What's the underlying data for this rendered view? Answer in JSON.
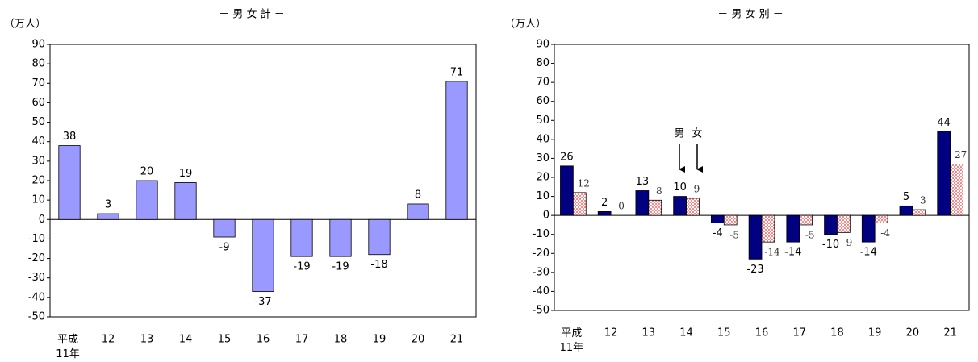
{
  "chart_data": [
    {
      "type": "bar",
      "title": "－ 男 女 計 －",
      "y_label": "（万人）",
      "categories": [
        "平成\n11年",
        "12",
        "13",
        "14",
        "15",
        "16",
        "17",
        "18",
        "19",
        "20",
        "21"
      ],
      "values": [
        38,
        3,
        20,
        19,
        -9,
        -37,
        -19,
        -19,
        -18,
        8,
        71
      ],
      "color": "#9999ff",
      "ylim": [
        -50,
        90
      ],
      "yticks": [
        -50,
        -40,
        -30,
        -20,
        -10,
        0,
        10,
        20,
        30,
        40,
        50,
        60,
        70,
        80,
        90
      ],
      "grid": false
    },
    {
      "type": "bar",
      "title": "－ 男 女 別 －",
      "y_label": "（万人）",
      "categories": [
        "平成\n11年",
        "12",
        "13",
        "14",
        "15",
        "16",
        "17",
        "18",
        "19",
        "20",
        "21"
      ],
      "series": [
        {
          "name": "男",
          "color": "#000080",
          "values": [
            26,
            2,
            13,
            10,
            -4,
            -23,
            -14,
            -10,
            -14,
            5,
            44
          ]
        },
        {
          "name": "女",
          "color": "#ff3333",
          "values": [
            12,
            0,
            8,
            9,
            -5,
            -14,
            -5,
            -9,
            -4,
            3,
            27
          ]
        }
      ],
      "ylim": [
        -50,
        90
      ],
      "yticks": [
        -50,
        -40,
        -30,
        -20,
        -10,
        0,
        10,
        20,
        30,
        40,
        50,
        60,
        70,
        80,
        90
      ],
      "grid": false
    }
  ]
}
